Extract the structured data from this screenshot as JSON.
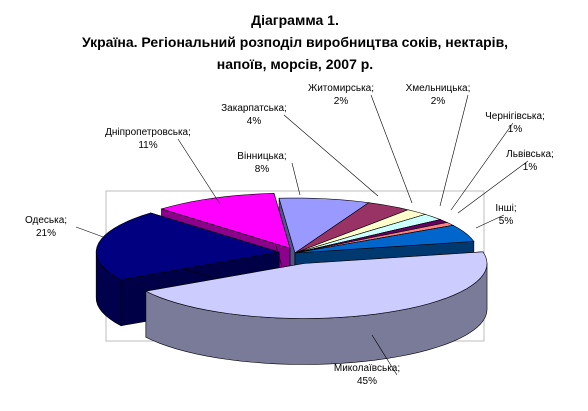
{
  "chart_data": {
    "type": "pie",
    "style": "3d-exploded",
    "title": [
      "Діаграмма 1.",
      "Україна. Регіональний розподіл виробництва соків, нектарів,",
      "напоїв, морсів, 2007 р."
    ],
    "unit": "%",
    "slices": [
      {
        "name": "Вінницька;",
        "value": 8,
        "label": "8%",
        "color": "#9999ff"
      },
      {
        "name": "Закарпатська;",
        "value": 4,
        "label": "4%",
        "color": "#993366"
      },
      {
        "name": "Житомирська;",
        "value": 2,
        "label": "2%",
        "color": "#ffffcc"
      },
      {
        "name": "Хмельницька;",
        "value": 2,
        "label": "2%",
        "color": "#ccffff"
      },
      {
        "name": "Чернігівська;",
        "value": 1,
        "label": "1%",
        "color": "#660066"
      },
      {
        "name": "Львівська;",
        "value": 1,
        "label": "1%",
        "color": "#ff8080"
      },
      {
        "name": "Інші;",
        "value": 5,
        "label": "5%",
        "color": "#0066cc"
      },
      {
        "name": "Миколаївська;",
        "value": 45,
        "label": "45%",
        "color": "#ccccff"
      },
      {
        "name": "Одеська;",
        "value": 21,
        "label": "21%",
        "color": "#000080"
      },
      {
        "name": "Дніпропетровська;",
        "value": 11,
        "label": "11%",
        "color": "#ff00ff"
      }
    ]
  }
}
